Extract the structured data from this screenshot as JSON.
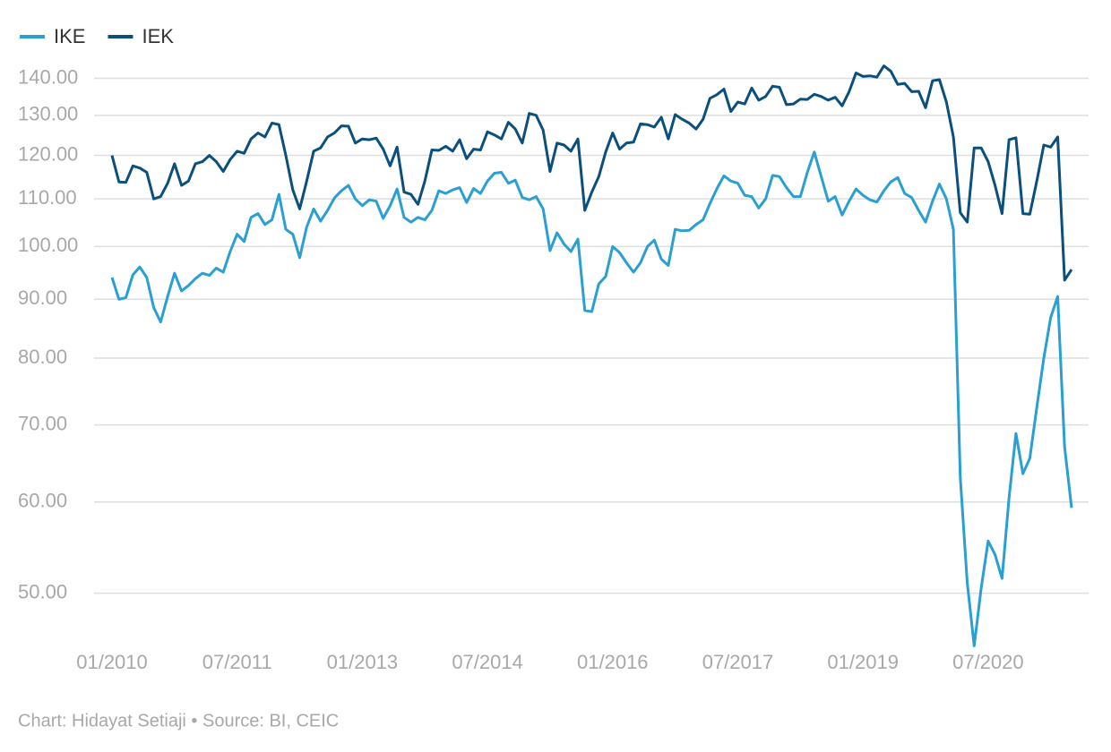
{
  "chart_data": {
    "type": "line",
    "log_scale": true,
    "grid": true,
    "legend": "top-left",
    "footer": "Chart: Hidayat Setiaji • Source: BI, CEIC",
    "x": [
      "01/2010",
      "02/2010",
      "03/2010",
      "04/2010",
      "05/2010",
      "06/2010",
      "07/2010",
      "08/2010",
      "09/2010",
      "10/2010",
      "11/2010",
      "12/2010",
      "01/2011",
      "02/2011",
      "03/2011",
      "04/2011",
      "05/2011",
      "06/2011",
      "07/2011",
      "08/2011",
      "09/2011",
      "10/2011",
      "11/2011",
      "12/2011",
      "01/2012",
      "02/2012",
      "03/2012",
      "04/2012",
      "05/2012",
      "06/2012",
      "07/2012",
      "08/2012",
      "09/2012",
      "10/2012",
      "11/2012",
      "12/2012",
      "01/2013",
      "02/2013",
      "03/2013",
      "04/2013",
      "05/2013",
      "06/2013",
      "07/2013",
      "08/2013",
      "09/2013",
      "10/2013",
      "11/2013",
      "12/2013",
      "01/2014",
      "02/2014",
      "03/2014",
      "04/2014",
      "05/2014",
      "06/2014",
      "07/2014",
      "08/2014",
      "09/2014",
      "10/2014",
      "11/2014",
      "12/2014",
      "01/2015",
      "02/2015",
      "03/2015",
      "04/2015",
      "05/2015",
      "06/2015",
      "07/2015",
      "08/2015",
      "09/2015",
      "10/2015",
      "11/2015",
      "12/2015",
      "01/2016",
      "02/2016",
      "03/2016",
      "04/2016",
      "05/2016",
      "06/2016",
      "07/2016",
      "08/2016",
      "09/2016",
      "10/2016",
      "11/2016",
      "12/2016",
      "01/2017",
      "02/2017",
      "03/2017",
      "04/2017",
      "05/2017",
      "06/2017",
      "07/2017",
      "08/2017",
      "09/2017",
      "10/2017",
      "11/2017",
      "12/2017",
      "01/2018",
      "02/2018",
      "03/2018",
      "04/2018",
      "05/2018",
      "06/2018",
      "07/2018",
      "08/2018",
      "09/2018",
      "10/2018",
      "11/2018",
      "12/2018",
      "01/2019",
      "02/2019",
      "03/2019",
      "04/2019",
      "05/2019",
      "06/2019",
      "07/2019",
      "08/2019",
      "09/2019",
      "10/2019",
      "11/2019",
      "12/2019",
      "01/2020",
      "02/2020",
      "03/2020",
      "04/2020",
      "05/2020",
      "06/2020",
      "07/2020",
      "08/2020",
      "09/2020",
      "10/2020",
      "11/2020",
      "12/2020",
      "01/2021",
      "02/2021",
      "03/2021",
      "04/2021",
      "05/2021",
      "06/2021",
      "07/2021"
    ],
    "xtick_indices": [
      0,
      18,
      36,
      54,
      72,
      90,
      108,
      126
    ],
    "series": [
      {
        "name": "IKE",
        "color": "#2a9fd2",
        "values": [
          94,
          90,
          90.3,
          94.5,
          96,
          94,
          88.5,
          86,
          90.5,
          94.8,
          91.5,
          92.5,
          93.8,
          94.8,
          94.4,
          95.8,
          95,
          99,
          102.5,
          101,
          106,
          106.8,
          104.5,
          105.5,
          111,
          103.5,
          102.5,
          97.8,
          104,
          107.8,
          105.2,
          107.5,
          110.2,
          111.8,
          113,
          110,
          108.5,
          109.8,
          109.5,
          105.8,
          108.5,
          112.2,
          106,
          105,
          106,
          105.5,
          107.5,
          111.8,
          111.2,
          112,
          112.5,
          109.2,
          112.3,
          111.2,
          114,
          115.8,
          116,
          113.5,
          114.2,
          110.3,
          109.8,
          110.5,
          107.8,
          99.2,
          102.8,
          100.5,
          99,
          101.5,
          88,
          87.8,
          92.8,
          94.2,
          100,
          98.8,
          96.8,
          95,
          96.8,
          100,
          101.3,
          97.5,
          96.3,
          103.5,
          103.2,
          103.3,
          104.5,
          105.5,
          109,
          112.3,
          115.2,
          114,
          113.5,
          110.8,
          110.5,
          108,
          110,
          115.3,
          115,
          112.5,
          110.5,
          110.5,
          116,
          120.8,
          115,
          109.5,
          110.5,
          106.5,
          109.5,
          112.2,
          110.8,
          109.8,
          109.3,
          111.8,
          113.8,
          114.8,
          111.2,
          110.3,
          107.5,
          105,
          109.5,
          113.3,
          110,
          103.5,
          63,
          51,
          45,
          50.5,
          55.5,
          54,
          51.5,
          60.5,
          68.8,
          63.5,
          65.5,
          72.5,
          80,
          86.8,
          90.5,
          67,
          59.3
        ]
      },
      {
        "name": "IEK",
        "color": "#0b4f7c",
        "values": [
          120,
          113.8,
          113.7,
          117.5,
          117,
          116,
          110,
          110.5,
          113.5,
          118,
          113,
          114,
          118,
          118.5,
          120,
          118.5,
          116.2,
          119,
          121,
          120.5,
          124,
          125.5,
          124.5,
          128,
          127.6,
          120,
          112,
          107.8,
          114,
          121,
          121.8,
          124.5,
          125.5,
          127.3,
          127.2,
          123,
          124,
          123.8,
          124.2,
          121.5,
          117.5,
          122,
          111.5,
          111,
          108.8,
          114,
          121.3,
          121.2,
          122.2,
          121,
          123.8,
          119.2,
          121.5,
          121.3,
          125.8,
          125,
          124,
          128.2,
          126.5,
          123,
          130.5,
          130,
          126.2,
          116.2,
          123,
          122.5,
          121,
          124,
          107.5,
          111.5,
          115,
          120.8,
          125.5,
          121.5,
          123,
          123.2,
          127.8,
          127.6,
          127,
          129.5,
          124,
          130.2,
          129,
          128,
          126.5,
          129,
          134.5,
          135.5,
          137,
          131,
          133.5,
          133,
          137.3,
          134,
          135,
          137.8,
          137.5,
          132.8,
          133,
          134.3,
          134.2,
          135.6,
          135,
          134,
          134.8,
          132.5,
          136.3,
          141.5,
          140.5,
          140.7,
          140.3,
          143.5,
          142,
          138.3,
          138.6,
          136.3,
          136.4,
          132,
          139.3,
          139.6,
          133.5,
          124.5,
          107,
          105,
          121.8,
          121.8,
          118.5,
          113,
          106.8,
          123.8,
          124.3,
          106.8,
          106.7,
          114,
          122.5,
          122,
          124.5,
          93.5,
          95.5
        ]
      }
    ],
    "ylim": [
      44,
      146
    ],
    "yticks": [
      {
        "value": 50,
        "label": "50.00"
      },
      {
        "value": 60,
        "label": "60.00"
      },
      {
        "value": 70,
        "label": "70.00"
      },
      {
        "value": 80,
        "label": "80.00"
      },
      {
        "value": 90,
        "label": "90.00"
      },
      {
        "value": 100,
        "label": "100.00"
      },
      {
        "value": 110,
        "label": "110.00"
      },
      {
        "value": 120,
        "label": "120.00"
      },
      {
        "value": 130,
        "label": "130.00"
      },
      {
        "value": 140,
        "label": "140.00"
      }
    ]
  }
}
